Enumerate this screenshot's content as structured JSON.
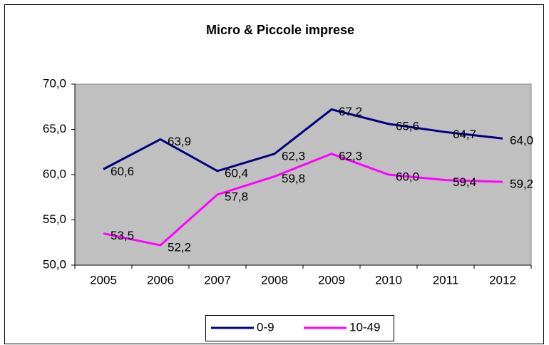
{
  "chart_data": {
    "type": "line",
    "title": "Micro & Piccole imprese",
    "categories": [
      "2005",
      "2006",
      "2007",
      "2008",
      "2009",
      "2010",
      "2011",
      "2012"
    ],
    "series": [
      {
        "name": "0-9",
        "color": "#000080",
        "values": [
          60.6,
          63.9,
          60.4,
          62.3,
          67.2,
          65.6,
          64.7,
          64.0
        ],
        "value_labels": [
          "60,6",
          "63,9",
          "60,4",
          "62,3",
          "67,2",
          "65,6",
          "64,7",
          "64,0"
        ]
      },
      {
        "name": "10-49",
        "color": "#ff00ff",
        "values": [
          53.5,
          52.2,
          57.8,
          59.8,
          62.3,
          60.0,
          59.4,
          59.2
        ],
        "value_labels": [
          "53,5",
          "52,2",
          "57,8",
          "59,8",
          "62,3",
          "60,0",
          "59,4",
          "59,2"
        ]
      }
    ],
    "ylim": [
      50,
      70
    ],
    "yticks": [
      {
        "value": 50,
        "label": "50,0"
      },
      {
        "value": 55,
        "label": "55,0"
      },
      {
        "value": 60,
        "label": "60,0"
      },
      {
        "value": 65,
        "label": "65,0"
      },
      {
        "value": 70,
        "label": "70,0"
      }
    ],
    "plot_background": "#c0c0c0",
    "legend": "bottom"
  }
}
